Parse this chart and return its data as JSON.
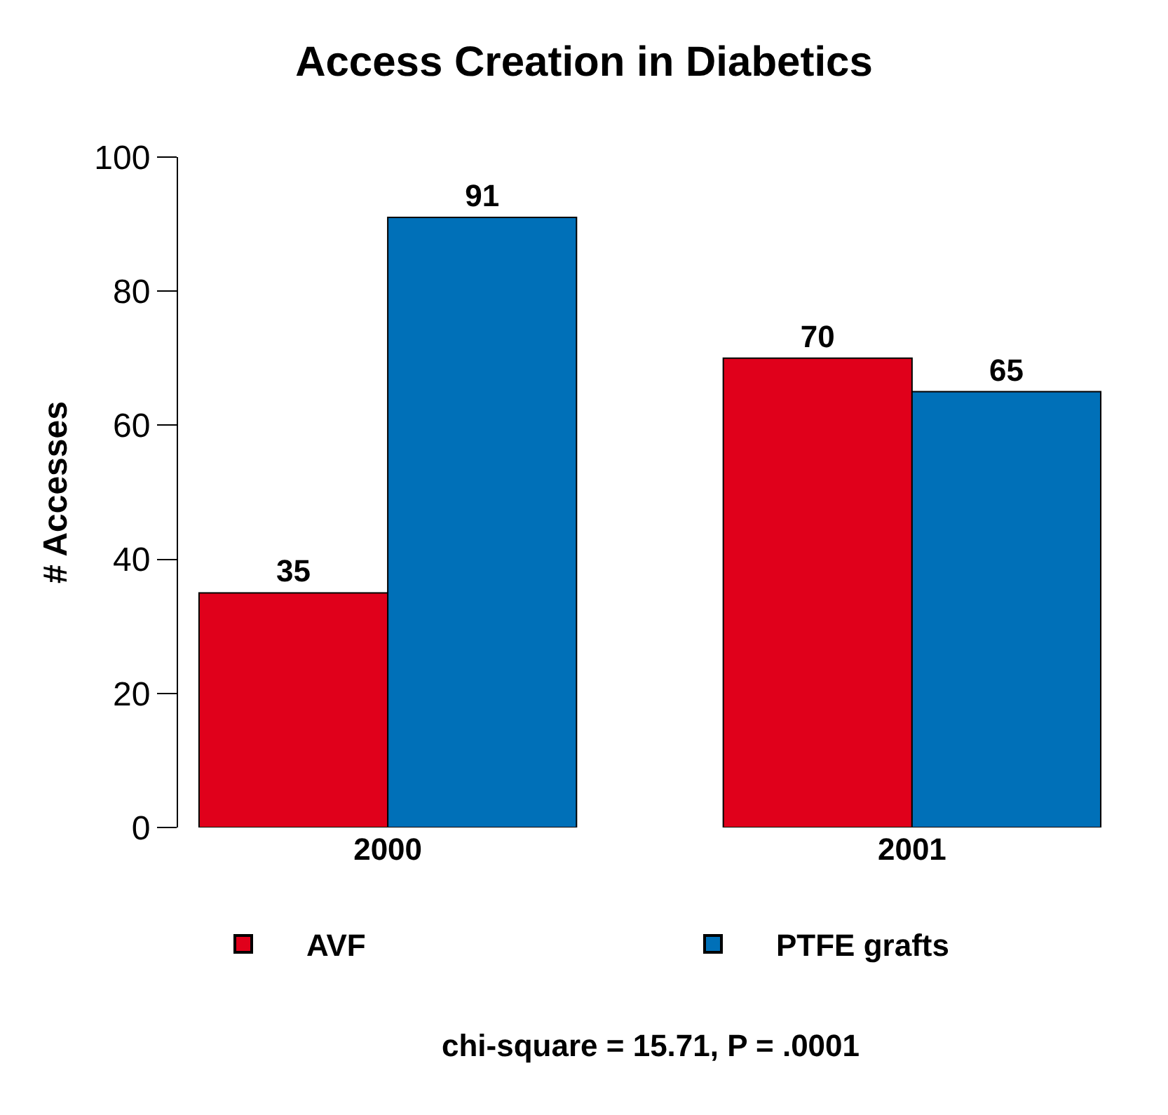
{
  "chart_data": {
    "type": "bar",
    "title": "Access Creation in Diabetics",
    "ylabel": "# Accesses",
    "categories": [
      "2000",
      "2001"
    ],
    "series": [
      {
        "name": "AVF",
        "color": "#e0001b",
        "values": [
          35,
          70
        ]
      },
      {
        "name": "PTFE grafts",
        "color": "#0070b8",
        "values": [
          91,
          65
        ]
      }
    ],
    "ylim": [
      0,
      100
    ],
    "yticks": [
      0,
      20,
      40,
      60,
      80,
      100
    ],
    "legend": "bottom",
    "data_labels": true,
    "annotations": [
      "chi-square = 15.71, P = .0001"
    ]
  }
}
